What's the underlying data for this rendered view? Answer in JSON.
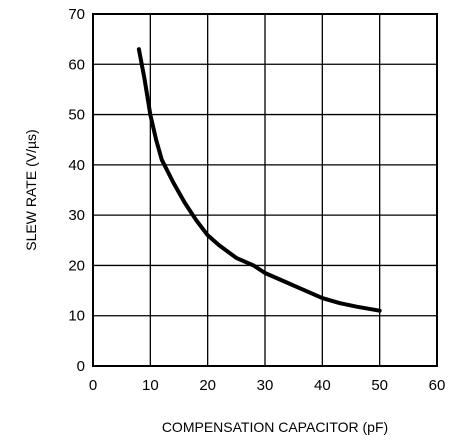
{
  "chart_data": {
    "type": "line",
    "title": "",
    "xlabel": "COMPENSATION CAPACITOR (pF)",
    "ylabel": "SLEW RATE (V/µs)",
    "xlim": [
      0,
      60
    ],
    "ylim": [
      0,
      70
    ],
    "xticks": [
      "0",
      "10",
      "20",
      "30",
      "40",
      "50",
      "60"
    ],
    "yticks": [
      "0",
      "10",
      "20",
      "30",
      "40",
      "50",
      "60",
      "70"
    ],
    "grid": true,
    "series": [
      {
        "x": [
          8,
          9,
          10,
          11,
          12,
          14,
          16,
          18,
          20,
          22,
          25,
          28,
          30,
          33,
          36,
          40,
          43,
          46,
          50
        ],
        "y": [
          63,
          57,
          50,
          45,
          41,
          36.5,
          32.5,
          29,
          26,
          24,
          21.5,
          20,
          18.5,
          17,
          15.5,
          13.5,
          12.5,
          11.8,
          11
        ]
      }
    ]
  }
}
